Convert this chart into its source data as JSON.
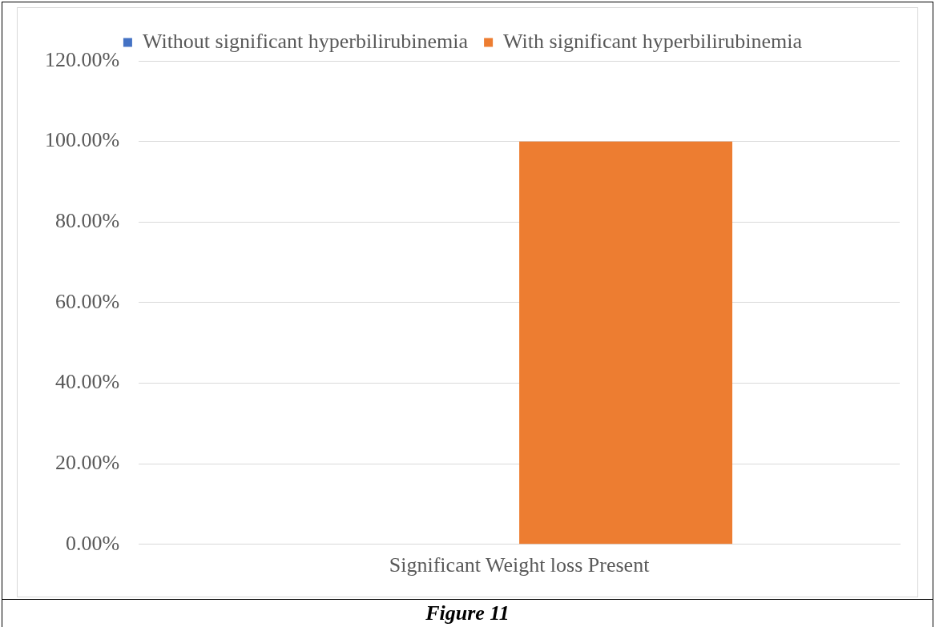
{
  "chart_data": {
    "type": "bar",
    "categories": [
      "Significant Weight loss Present"
    ],
    "series": [
      {
        "name": "Without significant hyperbilirubinemia",
        "color": "#4472c4",
        "values": [
          0
        ]
      },
      {
        "name": "With significant hyperbilirubinemia",
        "color": "#ed7d31",
        "values": [
          100
        ]
      }
    ],
    "ylim": [
      0,
      120
    ],
    "yticks": [
      {
        "value": 0,
        "label": "0.00%"
      },
      {
        "value": 20,
        "label": "20.00%"
      },
      {
        "value": 40,
        "label": "40.00%"
      },
      {
        "value": 60,
        "label": "60.00%"
      },
      {
        "value": 80,
        "label": "80.00%"
      },
      {
        "value": 100,
        "label": "100.00%"
      },
      {
        "value": 120,
        "label": "120.00%"
      }
    ],
    "grid": "y",
    "legend": "top",
    "annotations": [
      "Figure 11"
    ]
  }
}
